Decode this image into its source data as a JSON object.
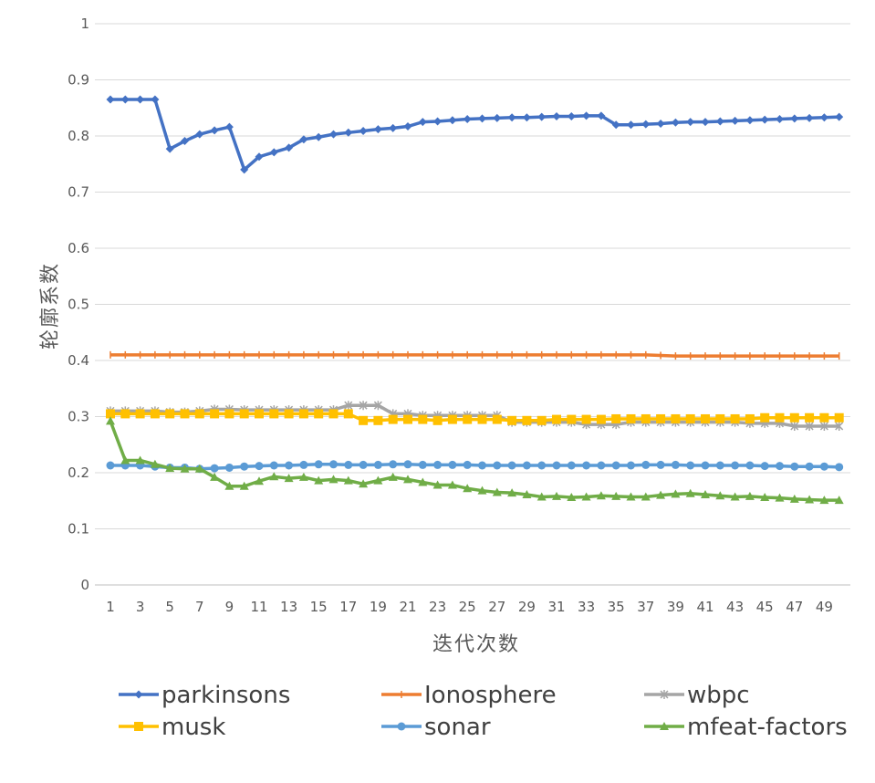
{
  "chart_data": {
    "type": "line",
    "title": "",
    "xlabel": "迭代次数",
    "ylabel": "轮廓系数",
    "ylim": [
      0,
      1
    ],
    "yticks": [
      "0",
      "0.1",
      "0.2",
      "0.3",
      "0.4",
      "0.5",
      "0.6",
      "0.7",
      "0.8",
      "0.9",
      "1"
    ],
    "x": [
      1,
      2,
      3,
      4,
      5,
      6,
      7,
      8,
      9,
      10,
      11,
      12,
      13,
      14,
      15,
      16,
      17,
      18,
      19,
      20,
      21,
      22,
      23,
      24,
      25,
      26,
      27,
      28,
      29,
      30,
      31,
      32,
      33,
      34,
      35,
      36,
      37,
      38,
      39,
      40,
      41,
      42,
      43,
      44,
      45,
      46,
      47,
      48,
      49,
      50
    ],
    "xtick_labels": [
      "1",
      "3",
      "5",
      "7",
      "9",
      "11",
      "13",
      "15",
      "17",
      "19",
      "21",
      "23",
      "25",
      "27",
      "29",
      "31",
      "33",
      "35",
      "37",
      "39",
      "41",
      "43",
      "45",
      "47",
      "49"
    ],
    "grid": true,
    "legend_position": "bottom",
    "series": [
      {
        "name": "parkinsons",
        "color": "#4472C4",
        "marker": "diamond",
        "values": [
          0.865,
          0.865,
          0.865,
          0.865,
          0.777,
          0.791,
          0.803,
          0.81,
          0.816,
          0.74,
          0.763,
          0.771,
          0.779,
          0.794,
          0.798,
          0.803,
          0.806,
          0.809,
          0.812,
          0.814,
          0.817,
          0.825,
          0.826,
          0.828,
          0.83,
          0.831,
          0.832,
          0.833,
          0.833,
          0.834,
          0.835,
          0.835,
          0.836,
          0.836,
          0.82,
          0.82,
          0.821,
          0.822,
          0.824,
          0.825,
          0.825,
          0.826,
          0.827,
          0.828,
          0.829,
          0.83,
          0.831,
          0.832,
          0.833,
          0.834
        ]
      },
      {
        "name": "Ionosphere",
        "color": "#ED7D31",
        "marker": "plus",
        "values": [
          0.41,
          0.41,
          0.41,
          0.41,
          0.41,
          0.41,
          0.41,
          0.41,
          0.41,
          0.41,
          0.41,
          0.41,
          0.41,
          0.41,
          0.41,
          0.41,
          0.41,
          0.41,
          0.41,
          0.41,
          0.41,
          0.41,
          0.41,
          0.41,
          0.41,
          0.41,
          0.41,
          0.41,
          0.41,
          0.41,
          0.41,
          0.41,
          0.41,
          0.41,
          0.41,
          0.41,
          0.41,
          0.409,
          0.408,
          0.408,
          0.408,
          0.408,
          0.408,
          0.408,
          0.408,
          0.408,
          0.408,
          0.408,
          0.408,
          0.408
        ]
      },
      {
        "name": "wbpc",
        "color": "#A5A5A5",
        "marker": "asterisk",
        "values": [
          0.31,
          0.31,
          0.31,
          0.31,
          0.308,
          0.308,
          0.31,
          0.313,
          0.313,
          0.312,
          0.312,
          0.312,
          0.312,
          0.312,
          0.312,
          0.312,
          0.32,
          0.32,
          0.32,
          0.305,
          0.305,
          0.302,
          0.302,
          0.302,
          0.302,
          0.302,
          0.302,
          0.29,
          0.29,
          0.29,
          0.29,
          0.29,
          0.286,
          0.286,
          0.286,
          0.29,
          0.29,
          0.29,
          0.29,
          0.29,
          0.29,
          0.29,
          0.29,
          0.288,
          0.288,
          0.288,
          0.283,
          0.283,
          0.283,
          0.283
        ]
      },
      {
        "name": "musk",
        "color": "#FFC000",
        "marker": "square",
        "values": [
          0.305,
          0.305,
          0.305,
          0.305,
          0.305,
          0.305,
          0.305,
          0.305,
          0.305,
          0.305,
          0.305,
          0.305,
          0.305,
          0.305,
          0.305,
          0.305,
          0.305,
          0.293,
          0.293,
          0.295,
          0.295,
          0.295,
          0.293,
          0.295,
          0.295,
          0.295,
          0.295,
          0.293,
          0.293,
          0.293,
          0.295,
          0.295,
          0.295,
          0.295,
          0.296,
          0.296,
          0.296,
          0.296,
          0.296,
          0.296,
          0.296,
          0.296,
          0.296,
          0.296,
          0.298,
          0.298,
          0.298,
          0.298,
          0.298,
          0.298
        ]
      },
      {
        "name": "sonar",
        "color": "#5B9BD5",
        "marker": "circle",
        "values": [
          0.213,
          0.213,
          0.213,
          0.211,
          0.209,
          0.209,
          0.207,
          0.208,
          0.209,
          0.211,
          0.212,
          0.213,
          0.213,
          0.214,
          0.215,
          0.215,
          0.214,
          0.214,
          0.214,
          0.215,
          0.215,
          0.214,
          0.214,
          0.214,
          0.214,
          0.213,
          0.213,
          0.213,
          0.213,
          0.213,
          0.213,
          0.213,
          0.213,
          0.213,
          0.213,
          0.213,
          0.214,
          0.214,
          0.214,
          0.213,
          0.213,
          0.213,
          0.213,
          0.213,
          0.212,
          0.212,
          0.211,
          0.211,
          0.211,
          0.21
        ]
      },
      {
        "name": "mfeat-factors",
        "color": "#70AD47",
        "marker": "triangle",
        "values": [
          0.292,
          0.222,
          0.222,
          0.215,
          0.208,
          0.207,
          0.207,
          0.192,
          0.176,
          0.176,
          0.185,
          0.193,
          0.19,
          0.192,
          0.186,
          0.188,
          0.186,
          0.18,
          0.186,
          0.192,
          0.188,
          0.183,
          0.178,
          0.178,
          0.172,
          0.168,
          0.165,
          0.164,
          0.161,
          0.157,
          0.158,
          0.156,
          0.157,
          0.159,
          0.158,
          0.157,
          0.157,
          0.16,
          0.162,
          0.163,
          0.161,
          0.159,
          0.157,
          0.158,
          0.156,
          0.155,
          0.153,
          0.152,
          0.151,
          0.151
        ]
      }
    ]
  }
}
